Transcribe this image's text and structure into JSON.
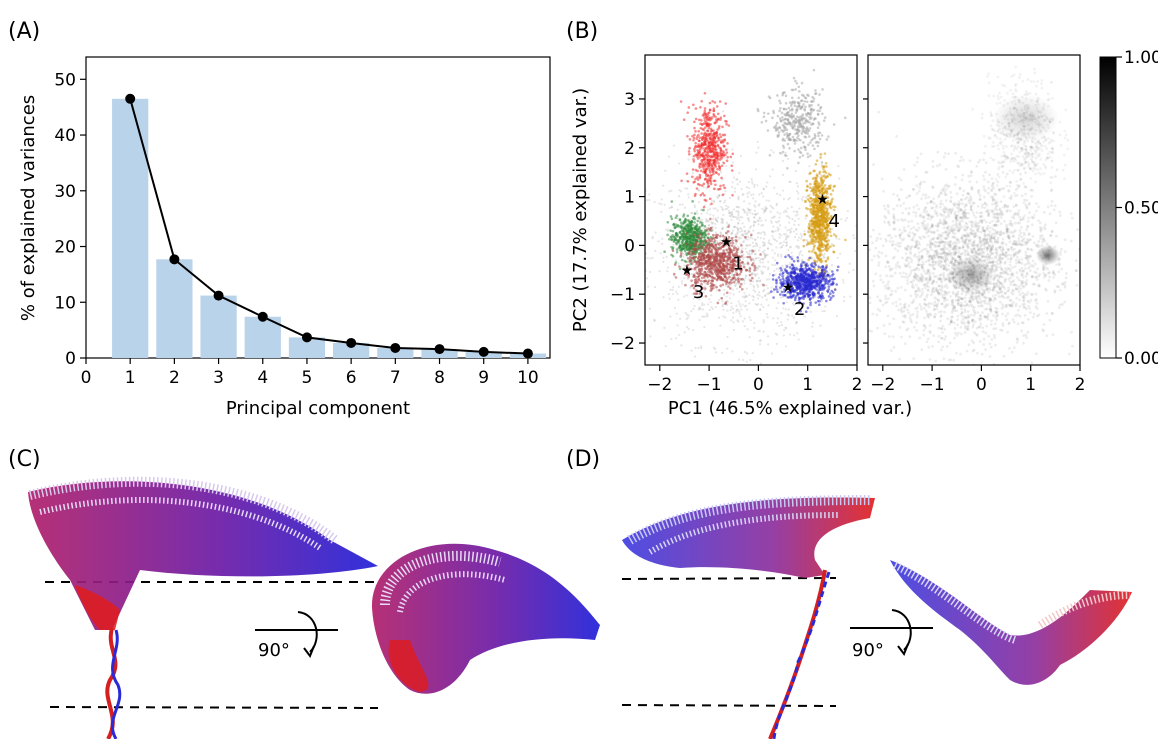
{
  "panels": {
    "a": {
      "label": "(A)"
    },
    "b": {
      "label": "(B)"
    },
    "c": {
      "label": "(C)",
      "rotation_label": "90°"
    },
    "d": {
      "label": "(D)",
      "rotation_label": "90°"
    }
  },
  "chart_data": [
    {
      "type": "bar",
      "panel": "(A)",
      "xlabel": "Principal component",
      "ylabel": "% of explained variances",
      "categories": [
        1,
        2,
        3,
        4,
        5,
        6,
        7,
        8,
        9,
        10
      ],
      "series": [
        {
          "kind": "bar",
          "color": "#b9d3ea",
          "values": [
            46.5,
            17.7,
            11.2,
            7.4,
            3.7,
            2.7,
            1.8,
            1.6,
            1.1,
            0.8
          ]
        },
        {
          "kind": "line",
          "color": "#000000",
          "values": [
            46.5,
            17.7,
            11.2,
            7.4,
            3.7,
            2.7,
            1.8,
            1.6,
            1.1,
            0.8
          ]
        }
      ],
      "xlim": [
        0,
        10.5
      ],
      "ylim": [
        0,
        54
      ],
      "xticks": [
        0,
        1,
        2,
        3,
        4,
        5,
        6,
        7,
        8,
        9,
        10
      ],
      "yticks": [
        0,
        10,
        20,
        30,
        40,
        50
      ],
      "grid": false
    },
    {
      "type": "scatter",
      "panel": "(B) left",
      "xlabel": "PC1 (46.5% explained var.)",
      "ylabel": "PC2 (17.7% explained var.)",
      "xlim": [
        -2.3,
        2.0
      ],
      "ylim": [
        -2.45,
        3.9
      ],
      "xticks": [
        -2,
        -1,
        0,
        1,
        2
      ],
      "yticks": [
        -2,
        -1,
        0,
        1,
        2,
        3
      ],
      "clusters": [
        {
          "color": "#f03030",
          "center": [
            -1.0,
            2.0
          ],
          "spread": [
            0.28,
            0.75
          ],
          "density": "medium"
        },
        {
          "color": "#2e8b3a",
          "center": [
            -1.4,
            0.15
          ],
          "spread": [
            0.3,
            0.35
          ],
          "density": "medium"
        },
        {
          "color": "#b04848",
          "center": [
            -0.85,
            -0.35
          ],
          "spread": [
            0.5,
            0.45
          ],
          "density": "high"
        },
        {
          "color": "#d69a10",
          "center": [
            1.25,
            0.55
          ],
          "spread": [
            0.2,
            0.8
          ],
          "density": "high"
        },
        {
          "color": "#2a2ad0",
          "center": [
            0.95,
            -0.75
          ],
          "spread": [
            0.45,
            0.3
          ],
          "density": "high"
        },
        {
          "color": "#aaaaaa",
          "center": [
            0.8,
            2.5
          ],
          "spread": [
            0.45,
            0.55
          ],
          "density": "low"
        }
      ],
      "markers": [
        {
          "label": "1",
          "x": -0.65,
          "y": 0.08
        },
        {
          "label": "2",
          "x": 0.6,
          "y": -0.85
        },
        {
          "label": "3",
          "x": -1.45,
          "y": -0.5
        },
        {
          "label": "4",
          "x": 1.3,
          "y": 0.95
        }
      ]
    },
    {
      "type": "heatmap",
      "panel": "(B) right",
      "xlim": [
        -2.3,
        2.0
      ],
      "ylim": [
        -2.45,
        3.9
      ],
      "xticks": [
        -2,
        -1,
        0,
        1,
        2
      ],
      "colorbar": {
        "min": 0.0,
        "max": 1.0,
        "ticks": [
          "0.00",
          "0.50",
          "1.00"
        ],
        "cmap": "Greys"
      },
      "hotspots": [
        {
          "x": -0.2,
          "y": -0.6,
          "intensity": 0.6
        },
        {
          "x": 1.35,
          "y": -0.2,
          "intensity": 1.0
        },
        {
          "x": 0.9,
          "y": 2.6,
          "intensity": 0.3
        }
      ]
    }
  ]
}
